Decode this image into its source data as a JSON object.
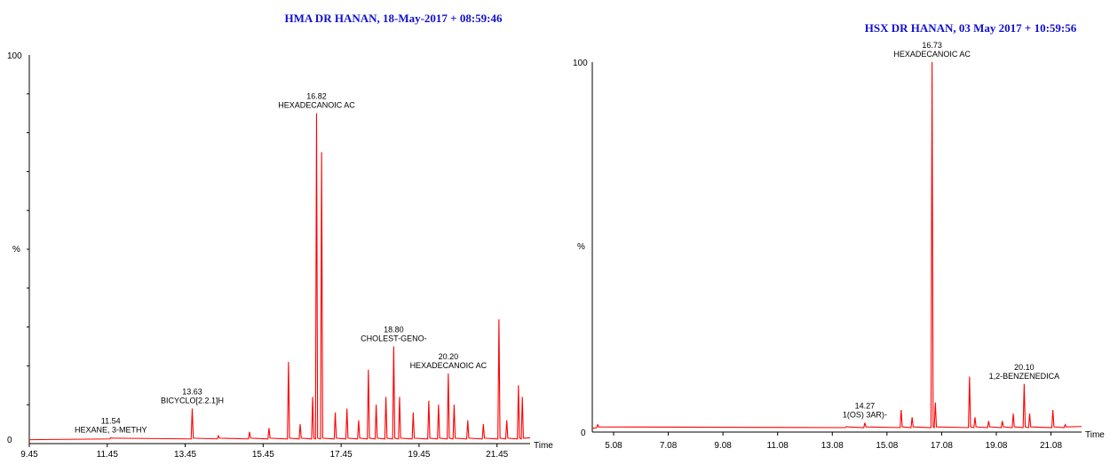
{
  "chart_data": [
    {
      "type": "line",
      "title": "HMA DR HANAN, 18-May-2017 + 08:59:46",
      "xlabel": "Time",
      "ylabel": "%",
      "xlim": [
        9.45,
        22.3
      ],
      "ylim": [
        0,
        100
      ],
      "xticks": [
        "9.45",
        "11.45",
        "13.45",
        "15.45",
        "17.45",
        "19.45",
        "21.45"
      ],
      "ytick_labels": [
        "100",
        "%",
        "0"
      ],
      "series_color": "#ff0000",
      "peaks": [
        {
          "x": 11.54,
          "y": 1.5,
          "label_time": "11.54",
          "label_name": "HEXANE, 3-METHY"
        },
        {
          "x": 13.63,
          "y": 9,
          "label_time": "13.63",
          "label_name": "BICYCLO[2.2.1]H"
        },
        {
          "x": 16.82,
          "y": 85,
          "label_time": "16.82",
          "label_name": "HEXADECANOIC AC"
        },
        {
          "x": 18.8,
          "y": 25,
          "label_time": "18.80",
          "label_name": "CHOLEST-GENO-"
        },
        {
          "x": 20.2,
          "y": 18,
          "label_time": "20.20",
          "label_name": "HEXADECANOIC AC"
        }
      ],
      "minor_peaks": [
        {
          "x": 14.3,
          "y": 2
        },
        {
          "x": 15.1,
          "y": 3
        },
        {
          "x": 15.6,
          "y": 4
        },
        {
          "x": 16.1,
          "y": 21
        },
        {
          "x": 16.4,
          "y": 5
        },
        {
          "x": 16.72,
          "y": 12
        },
        {
          "x": 16.95,
          "y": 75
        },
        {
          "x": 17.3,
          "y": 8
        },
        {
          "x": 17.6,
          "y": 9
        },
        {
          "x": 17.9,
          "y": 6
        },
        {
          "x": 18.15,
          "y": 19
        },
        {
          "x": 18.35,
          "y": 10
        },
        {
          "x": 18.6,
          "y": 12
        },
        {
          "x": 18.95,
          "y": 12
        },
        {
          "x": 19.3,
          "y": 8
        },
        {
          "x": 19.7,
          "y": 11
        },
        {
          "x": 19.95,
          "y": 10
        },
        {
          "x": 20.35,
          "y": 10
        },
        {
          "x": 20.7,
          "y": 6
        },
        {
          "x": 21.1,
          "y": 5
        },
        {
          "x": 21.5,
          "y": 32
        },
        {
          "x": 21.7,
          "y": 6
        },
        {
          "x": 22.0,
          "y": 15
        },
        {
          "x": 22.1,
          "y": 12
        }
      ]
    },
    {
      "type": "line",
      "title": "HSX DR HANAN, 03 May 2017 + 10:59:56",
      "xlabel": "Time",
      "ylabel": "%",
      "xlim": [
        4.3,
        22.2
      ],
      "ylim": [
        0,
        100
      ],
      "xticks": [
        "5.08",
        "7.08",
        "9.08",
        "11.08",
        "13.08",
        "15.08",
        "17.08",
        "19.08",
        "21.08"
      ],
      "ytick_labels": [
        "100",
        "%",
        "0"
      ],
      "series_color": "#ff0000",
      "peaks": [
        {
          "x": 14.27,
          "y": 2.5,
          "label_time": "14.27",
          "label_name": "1(OS) 3AR)-"
        },
        {
          "x": 16.73,
          "y": 100,
          "label_time": "16.73",
          "label_name": "HEXADECANOIC AC"
        },
        {
          "x": 20.1,
          "y": 13,
          "label_time": "20.10",
          "label_name": "1,2-BENZENEDICA"
        }
      ],
      "minor_peaks": [
        {
          "x": 4.5,
          "y": 2
        },
        {
          "x": 13.6,
          "y": 1.5
        },
        {
          "x": 15.6,
          "y": 6
        },
        {
          "x": 16.0,
          "y": 4
        },
        {
          "x": 16.85,
          "y": 8
        },
        {
          "x": 18.1,
          "y": 15
        },
        {
          "x": 18.3,
          "y": 4
        },
        {
          "x": 18.8,
          "y": 3
        },
        {
          "x": 19.3,
          "y": 3
        },
        {
          "x": 19.7,
          "y": 5
        },
        {
          "x": 20.3,
          "y": 5
        },
        {
          "x": 21.15,
          "y": 6
        },
        {
          "x": 21.6,
          "y": 2
        }
      ]
    }
  ]
}
